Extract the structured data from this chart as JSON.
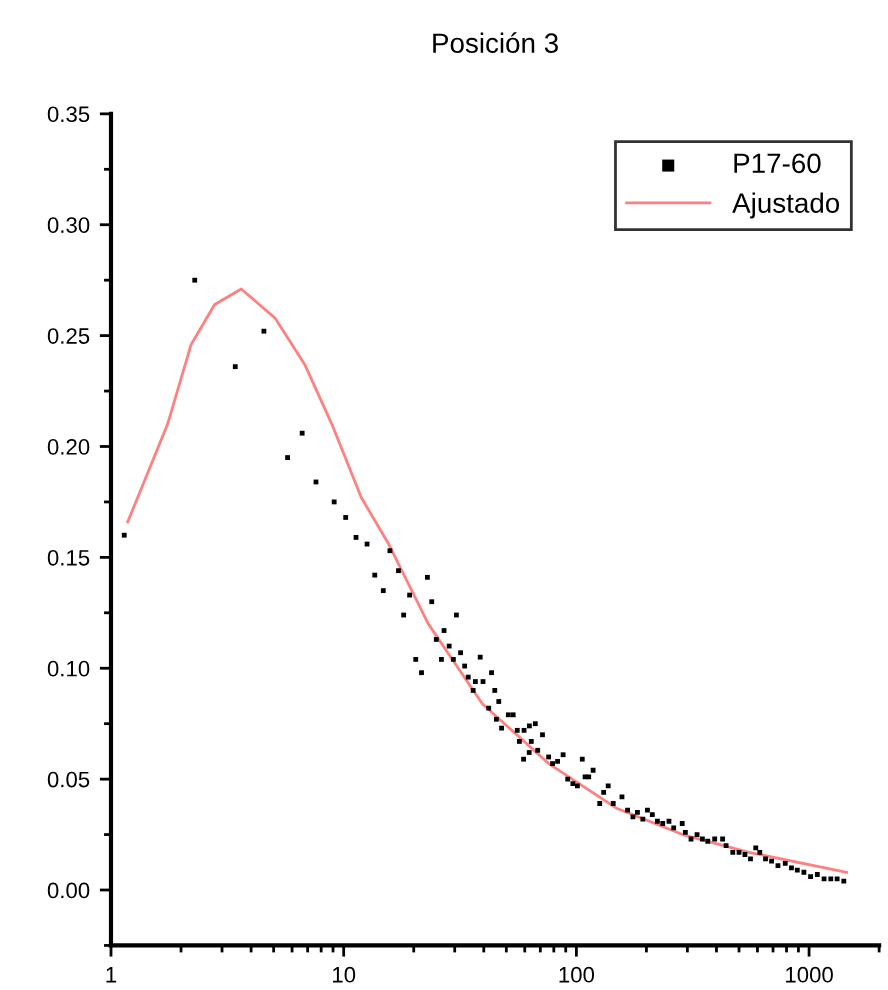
{
  "chart_data": {
    "type": "scatter",
    "title": "Posición 3",
    "log": "x",
    "legend": "top right",
    "grid": false,
    "xlim": [
      1,
      2000
    ],
    "ylim": [
      -0.025,
      0.35
    ],
    "xticks": [
      1,
      10,
      100,
      1000
    ],
    "yticks": [
      {
        "value": 0,
        "label": "0.00"
      },
      {
        "value": 0.05,
        "label": "0.05"
      },
      {
        "value": 0.1,
        "label": "0.10"
      },
      {
        "value": 0.15,
        "label": "0.15"
      },
      {
        "value": 0.2,
        "label": "0.20"
      },
      {
        "value": 0.25,
        "label": "0.25"
      },
      {
        "value": 0.3,
        "label": "0.30"
      },
      {
        "value": 0.35,
        "label": "0.35"
      }
    ],
    "series": [
      {
        "name": "P17-60",
        "marker": "square",
        "color": "#000000",
        "x": [
          1.14,
          2.29,
          3.42,
          4.54,
          5.74,
          6.63,
          7.6,
          9.1,
          10.2,
          11.3,
          12.6,
          15.8,
          17.2,
          13.6,
          14.8,
          19.2,
          22.9,
          18.1,
          23.9,
          20.4,
          21.6,
          25.0,
          27.0,
          30.5,
          26.3,
          28.4,
          29.6,
          31.8,
          33.1,
          38.6,
          43.2,
          34.3,
          36.8,
          39.7,
          36.0,
          44.6,
          46.4,
          42.0,
          45.3,
          47.7,
          51,
          53.5,
          55.7,
          56.9,
          59.6,
          62.8,
          66.6,
          71.5,
          64,
          62.7,
          68.2,
          59.3,
          76,
          79,
          83,
          87.7,
          106,
          91.8,
          96.6,
          101,
          109,
          113,
          118,
          126,
          131,
          137,
          144,
          157,
          166,
          175,
          183,
          193,
          202,
          212,
          223,
          235,
          250,
          262,
          285,
          294,
          311,
          330,
          348,
          367,
          393,
          425,
          440,
          470,
          500,
          530,
          560,
          590,
          614,
          650,
          690,
          735,
          790,
          840,
          890,
          950,
          1015,
          1085,
          1160,
          1240,
          1320,
          1410
        ],
        "values": [
          0.16,
          0.275,
          0.236,
          0.252,
          0.195,
          0.206,
          0.184,
          0.175,
          0.168,
          0.159,
          0.156,
          0.153,
          0.144,
          0.142,
          0.135,
          0.133,
          0.141,
          0.124,
          0.13,
          0.104,
          0.098,
          0.113,
          0.117,
          0.124,
          0.104,
          0.11,
          0.104,
          0.107,
          0.101,
          0.105,
          0.098,
          0.096,
          0.094,
          0.094,
          0.09,
          0.09,
          0.085,
          0.082,
          0.077,
          0.073,
          0.079,
          0.079,
          0.072,
          0.067,
          0.072,
          0.074,
          0.075,
          0.07,
          0.067,
          0.062,
          0.063,
          0.059,
          0.06,
          0.057,
          0.058,
          0.061,
          0.059,
          0.05,
          0.048,
          0.047,
          0.051,
          0.051,
          0.054,
          0.039,
          0.044,
          0.047,
          0.039,
          0.042,
          0.036,
          0.033,
          0.035,
          0.032,
          0.036,
          0.034,
          0.031,
          0.03,
          0.031,
          0.028,
          0.03,
          0.026,
          0.023,
          0.025,
          0.023,
          0.022,
          0.023,
          0.023,
          0.02,
          0.017,
          0.017,
          0.016,
          0.014,
          0.019,
          0.017,
          0.014,
          0.013,
          0.011,
          0.012,
          0.01,
          0.009,
          0.008,
          0.006,
          0.007,
          0.005,
          0.005,
          0.005,
          0.004
        ]
      },
      {
        "name": "Ajustado",
        "type": "line",
        "marker": "none",
        "line_style": "solid",
        "color": "#ff8080",
        "x": [
          1.18,
          1.75,
          2.21,
          2.79,
          3.63,
          5.06,
          6.8,
          8.9,
          11.9,
          15.6,
          23.1,
          39.4,
          76,
          148,
          286,
          552,
          1450
        ],
        "values": [
          0.166,
          0.21,
          0.246,
          0.264,
          0.271,
          0.258,
          0.237,
          0.21,
          0.177,
          0.156,
          0.12,
          0.084,
          0.057,
          0.037,
          0.025,
          0.017,
          0.008
        ]
      }
    ]
  }
}
